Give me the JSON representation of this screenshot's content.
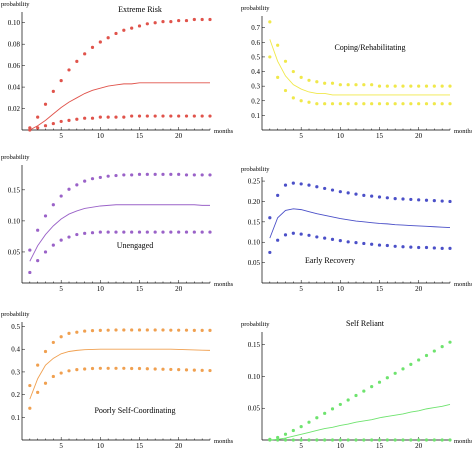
{
  "chart_data": [
    {
      "type": "line",
      "title": "Extreme Risk",
      "xlabel": "months",
      "ylabel": "probability",
      "xlim": [
        0,
        24
      ],
      "ylim": [
        0,
        0.11
      ],
      "xticks": [
        5,
        10,
        15,
        20
      ],
      "yticks": [
        0.02,
        0.04,
        0.06,
        0.08,
        0.1
      ],
      "ytick_labels": [
        "0.02",
        "0.04",
        "0.06",
        "0.08",
        "0.10"
      ],
      "color": "#e0534b",
      "x": [
        1,
        2,
        3,
        4,
        5,
        6,
        7,
        8,
        9,
        10,
        11,
        12,
        13,
        14,
        15,
        16,
        17,
        18,
        19,
        20,
        21,
        22,
        23,
        24
      ],
      "series": [
        {
          "role": "upper",
          "style": "dots",
          "values": [
            0.002,
            0.012,
            0.024,
            0.036,
            0.046,
            0.056,
            0.064,
            0.071,
            0.077,
            0.082,
            0.086,
            0.09,
            0.093,
            0.095,
            0.097,
            0.099,
            0.1,
            0.101,
            0.101,
            0.102,
            0.102,
            0.103,
            0.103,
            0.103
          ]
        },
        {
          "role": "mean",
          "style": "line",
          "values": [
            0.0,
            0.004,
            0.009,
            0.015,
            0.021,
            0.026,
            0.03,
            0.034,
            0.037,
            0.039,
            0.041,
            0.042,
            0.043,
            0.043,
            0.044,
            0.044,
            0.044,
            0.044,
            0.044,
            0.044,
            0.044,
            0.044,
            0.044,
            0.044
          ]
        },
        {
          "role": "lower",
          "style": "dots",
          "values": [
            0.0,
            0.002,
            0.004,
            0.006,
            0.008,
            0.009,
            0.01,
            0.011,
            0.011,
            0.012,
            0.012,
            0.012,
            0.012,
            0.013,
            0.013,
            0.013,
            0.013,
            0.013,
            0.013,
            0.013,
            0.013,
            0.013,
            0.013,
            0.013
          ]
        }
      ]
    },
    {
      "type": "line",
      "title": "Coping/Rehabilitating",
      "xlabel": "months",
      "ylabel": "probability",
      "xlim": [
        0,
        24
      ],
      "ylim": [
        0,
        0.78
      ],
      "xticks": [
        5,
        10,
        15,
        20
      ],
      "yticks": [
        0.1,
        0.2,
        0.3,
        0.4,
        0.5,
        0.6,
        0.7
      ],
      "ytick_labels": [
        "0.1",
        "0.2",
        "0.3",
        "0.4",
        "0.5",
        "0.6",
        "0.7"
      ],
      "color": "#f0e84a",
      "x": [
        1,
        2,
        3,
        4,
        5,
        6,
        7,
        8,
        9,
        10,
        11,
        12,
        13,
        14,
        15,
        16,
        17,
        18,
        19,
        20,
        21,
        22,
        23,
        24
      ],
      "series": [
        {
          "role": "upper",
          "style": "dots",
          "values": [
            0.74,
            0.58,
            0.47,
            0.4,
            0.36,
            0.34,
            0.33,
            0.32,
            0.32,
            0.31,
            0.31,
            0.31,
            0.31,
            0.31,
            0.3,
            0.3,
            0.3,
            0.3,
            0.3,
            0.3,
            0.3,
            0.3,
            0.3,
            0.3
          ]
        },
        {
          "role": "mean",
          "style": "line",
          "values": [
            0.62,
            0.47,
            0.37,
            0.31,
            0.28,
            0.26,
            0.25,
            0.25,
            0.24,
            0.24,
            0.24,
            0.24,
            0.24,
            0.24,
            0.24,
            0.24,
            0.24,
            0.24,
            0.24,
            0.24,
            0.24,
            0.24,
            0.24,
            0.24
          ]
        },
        {
          "role": "lower",
          "style": "dots",
          "values": [
            0.5,
            0.36,
            0.27,
            0.22,
            0.2,
            0.19,
            0.18,
            0.18,
            0.18,
            0.18,
            0.18,
            0.18,
            0.18,
            0.18,
            0.18,
            0.18,
            0.18,
            0.18,
            0.18,
            0.18,
            0.18,
            0.18,
            0.18,
            0.18
          ]
        }
      ]
    },
    {
      "type": "line",
      "title": "Unengaged",
      "xlabel": "months",
      "ylabel": "probability",
      "xlim": [
        0,
        24
      ],
      "ylim": [
        0,
        0.19
      ],
      "xticks": [
        5,
        10,
        15,
        20
      ],
      "yticks": [
        0.05,
        0.1,
        0.15
      ],
      "ytick_labels": [
        "0.05",
        "0.10",
        "0.15"
      ],
      "color": "#9a62c8",
      "x": [
        1,
        2,
        3,
        4,
        5,
        6,
        7,
        8,
        9,
        10,
        11,
        12,
        13,
        14,
        15,
        16,
        17,
        18,
        19,
        20,
        21,
        22,
        23,
        24
      ],
      "series": [
        {
          "role": "upper",
          "style": "dots",
          "values": [
            0.053,
            0.085,
            0.108,
            0.126,
            0.14,
            0.151,
            0.158,
            0.164,
            0.168,
            0.17,
            0.172,
            0.173,
            0.174,
            0.174,
            0.175,
            0.175,
            0.175,
            0.175,
            0.175,
            0.175,
            0.174,
            0.174,
            0.174,
            0.174
          ]
        },
        {
          "role": "mean",
          "style": "line",
          "values": [
            0.035,
            0.06,
            0.078,
            0.092,
            0.103,
            0.111,
            0.116,
            0.12,
            0.122,
            0.124,
            0.125,
            0.126,
            0.126,
            0.126,
            0.126,
            0.126,
            0.126,
            0.126,
            0.126,
            0.126,
            0.126,
            0.126,
            0.125,
            0.125
          ]
        },
        {
          "role": "lower",
          "style": "dots",
          "values": [
            0.017,
            0.036,
            0.05,
            0.061,
            0.069,
            0.074,
            0.078,
            0.08,
            0.081,
            0.082,
            0.082,
            0.082,
            0.082,
            0.082,
            0.082,
            0.082,
            0.082,
            0.082,
            0.082,
            0.082,
            0.082,
            0.082,
            0.082,
            0.082
          ]
        }
      ]
    },
    {
      "type": "line",
      "title": "Early Recovery",
      "xlabel": "months",
      "ylabel": "probability",
      "xlim": [
        0,
        24
      ],
      "ylim": [
        0,
        0.26
      ],
      "xticks": [
        5,
        10,
        15,
        20
      ],
      "yticks": [
        0.05,
        0.1,
        0.15,
        0.2,
        0.25
      ],
      "ytick_labels": [
        "0.05",
        "0.10",
        "0.15",
        "0.20",
        "0.25"
      ],
      "color": "#4b50c8",
      "x": [
        1,
        2,
        3,
        4,
        5,
        6,
        7,
        8,
        9,
        10,
        11,
        12,
        13,
        14,
        15,
        16,
        17,
        18,
        19,
        20,
        21,
        22,
        23,
        24
      ],
      "series": [
        {
          "role": "upper",
          "style": "dots",
          "values": [
            0.16,
            0.215,
            0.24,
            0.245,
            0.243,
            0.24,
            0.236,
            0.232,
            0.228,
            0.224,
            0.221,
            0.218,
            0.215,
            0.213,
            0.211,
            0.209,
            0.207,
            0.206,
            0.205,
            0.204,
            0.203,
            0.202,
            0.201,
            0.2
          ]
        },
        {
          "role": "mean",
          "style": "line",
          "values": [
            0.11,
            0.16,
            0.178,
            0.182,
            0.18,
            0.175,
            0.17,
            0.166,
            0.162,
            0.158,
            0.155,
            0.152,
            0.15,
            0.148,
            0.146,
            0.145,
            0.143,
            0.142,
            0.141,
            0.14,
            0.139,
            0.138,
            0.137,
            0.136
          ]
        },
        {
          "role": "lower",
          "style": "dots",
          "values": [
            0.075,
            0.105,
            0.118,
            0.122,
            0.12,
            0.117,
            0.113,
            0.11,
            0.107,
            0.104,
            0.101,
            0.099,
            0.097,
            0.095,
            0.093,
            0.092,
            0.09,
            0.089,
            0.088,
            0.087,
            0.087,
            0.086,
            0.085,
            0.085
          ]
        }
      ]
    },
    {
      "type": "line",
      "title": "Poorly Self-Coordinating",
      "xlabel": "months",
      "ylabel": "probability",
      "xlim": [
        0,
        24
      ],
      "ylim": [
        0,
        0.52
      ],
      "xticks": [
        5,
        10,
        15,
        20
      ],
      "yticks": [
        0.1,
        0.2,
        0.3,
        0.4,
        0.5
      ],
      "ytick_labels": [
        "0.1",
        "0.2",
        "0.3",
        "0.4",
        "0.5"
      ],
      "color": "#f0a050",
      "x": [
        1,
        2,
        3,
        4,
        5,
        6,
        7,
        8,
        9,
        10,
        11,
        12,
        13,
        14,
        15,
        16,
        17,
        18,
        19,
        20,
        21,
        22,
        23,
        24
      ],
      "series": [
        {
          "role": "upper",
          "style": "dots",
          "values": [
            0.24,
            0.33,
            0.39,
            0.43,
            0.455,
            0.47,
            0.475,
            0.48,
            0.482,
            0.483,
            0.484,
            0.485,
            0.485,
            0.485,
            0.485,
            0.485,
            0.485,
            0.485,
            0.484,
            0.484,
            0.484,
            0.483,
            0.483,
            0.483
          ]
        },
        {
          "role": "mean",
          "style": "line",
          "values": [
            0.18,
            0.27,
            0.33,
            0.36,
            0.38,
            0.39,
            0.395,
            0.398,
            0.399,
            0.4,
            0.4,
            0.4,
            0.4,
            0.4,
            0.4,
            0.4,
            0.4,
            0.4,
            0.4,
            0.399,
            0.398,
            0.397,
            0.396,
            0.395
          ]
        },
        {
          "role": "lower",
          "style": "dots",
          "values": [
            0.14,
            0.21,
            0.25,
            0.28,
            0.295,
            0.305,
            0.31,
            0.313,
            0.315,
            0.316,
            0.316,
            0.316,
            0.316,
            0.315,
            0.315,
            0.314,
            0.313,
            0.312,
            0.311,
            0.31,
            0.309,
            0.308,
            0.307,
            0.306
          ]
        }
      ]
    },
    {
      "type": "line",
      "title": "Self Reliant",
      "xlabel": "months",
      "ylabel": "probability",
      "xlim": [
        0,
        24
      ],
      "ylim": [
        0,
        0.17
      ],
      "xticks": [
        5,
        10,
        15,
        20
      ],
      "yticks": [
        0.05,
        0.1,
        0.15
      ],
      "ytick_labels": [
        "0.05",
        "0.10",
        "0.15"
      ],
      "color": "#6ee36e",
      "x": [
        1,
        2,
        3,
        4,
        5,
        6,
        7,
        8,
        9,
        10,
        11,
        12,
        13,
        14,
        15,
        16,
        17,
        18,
        19,
        20,
        21,
        22,
        23,
        24
      ],
      "series": [
        {
          "role": "upper",
          "style": "dots",
          "values": [
            0.001,
            0.004,
            0.009,
            0.015,
            0.021,
            0.028,
            0.035,
            0.042,
            0.049,
            0.056,
            0.063,
            0.07,
            0.077,
            0.084,
            0.091,
            0.098,
            0.105,
            0.112,
            0.119,
            0.126,
            0.133,
            0.14,
            0.147,
            0.154
          ]
        },
        {
          "role": "mean",
          "style": "line",
          "values": [
            0.0,
            0.001,
            0.003,
            0.006,
            0.009,
            0.012,
            0.015,
            0.018,
            0.02,
            0.023,
            0.025,
            0.028,
            0.03,
            0.032,
            0.035,
            0.037,
            0.039,
            0.041,
            0.044,
            0.046,
            0.049,
            0.051,
            0.053,
            0.056
          ]
        },
        {
          "role": "lower",
          "style": "dots",
          "values": [
            0.0,
            0.0,
            0.0,
            0.0,
            0.0,
            0.0,
            0.0,
            0.0,
            0.0,
            0.0,
            0.0,
            0.0,
            0.0,
            0.0,
            0.0,
            0.0,
            0.0,
            0.0,
            0.0,
            0.0,
            0.0,
            0.0,
            0.0,
            0.0
          ]
        }
      ]
    }
  ]
}
